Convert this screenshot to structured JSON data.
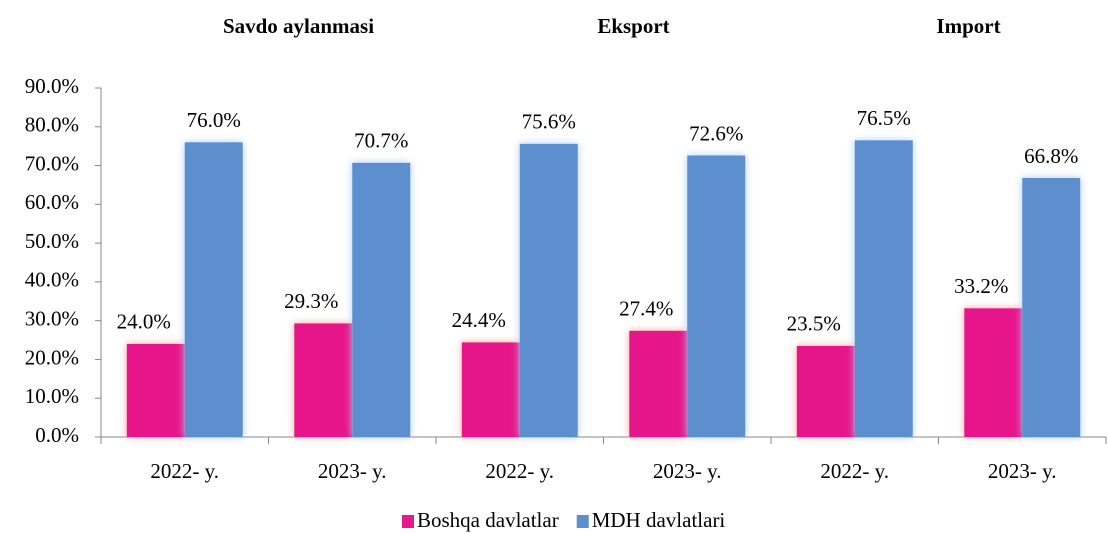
{
  "chart_data": {
    "type": "bar",
    "groups": [
      "Savdo aylanmasi",
      "Eksport",
      "Import"
    ],
    "categories": [
      "2022- y.",
      "2023- y.",
      "2022- y.",
      "2023- y.",
      "2022- y.",
      "2023- y."
    ],
    "series": [
      {
        "name": "Boshqa davlatlar",
        "color": "#e6198a",
        "values": [
          24.0,
          29.3,
          24.4,
          27.4,
          23.5,
          33.2
        ],
        "value_labels": [
          "24.0%",
          "29.3%",
          "24.4%",
          "27.4%",
          "23.5%",
          "33.2%"
        ]
      },
      {
        "name": "MDH davlatlari",
        "color": "#5d8fce",
        "values": [
          76.0,
          70.7,
          75.6,
          72.6,
          76.5,
          66.8
        ],
        "value_labels": [
          "76.0%",
          "70.7%",
          "75.6%",
          "72.6%",
          "76.5%",
          "66.8%"
        ]
      }
    ],
    "ylim": [
      0,
      90
    ],
    "yticks": [
      {
        "value": 0,
        "label": "0.0%"
      },
      {
        "value": 10,
        "label": "10.0%"
      },
      {
        "value": 20,
        "label": "20.0%"
      },
      {
        "value": 30,
        "label": "30.0%"
      },
      {
        "value": 40,
        "label": "40.0%"
      },
      {
        "value": 50,
        "label": "50.0%"
      },
      {
        "value": 60,
        "label": "60.0%"
      },
      {
        "value": 70,
        "label": "70.0%"
      },
      {
        "value": 80,
        "label": "80.0%"
      },
      {
        "value": 90,
        "label": "90.0%"
      }
    ],
    "legend": "bottom"
  }
}
